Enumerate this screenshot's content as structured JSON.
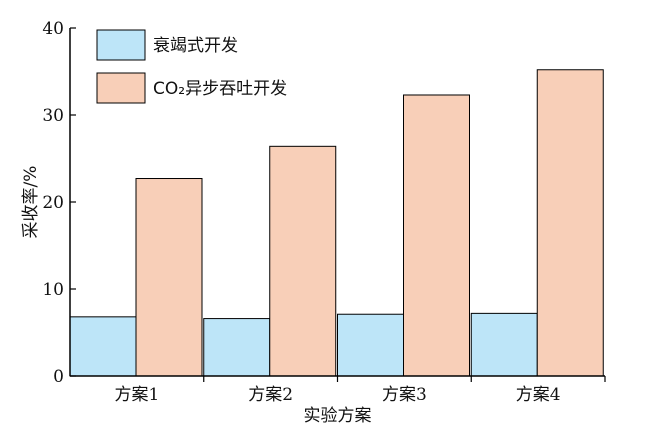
{
  "chart_data": {
    "type": "bar",
    "xlabel": "实验方案",
    "ylabel": "采收率/%",
    "ylim": [
      0,
      40
    ],
    "yticks": [
      0,
      10,
      20,
      30,
      40
    ],
    "categories": [
      "方案1",
      "方案2",
      "方案3",
      "方案4"
    ],
    "series": [
      {
        "name": "衰竭式开发",
        "color": "#bde5f8",
        "values": [
          6.8,
          6.6,
          7.1,
          7.2
        ]
      },
      {
        "name": "CO₂异步吞吐开发",
        "color": "#f8cfb8",
        "values": [
          22.7,
          26.4,
          32.3,
          35.2
        ]
      }
    ],
    "legend_position": "top-left",
    "grid": false
  }
}
